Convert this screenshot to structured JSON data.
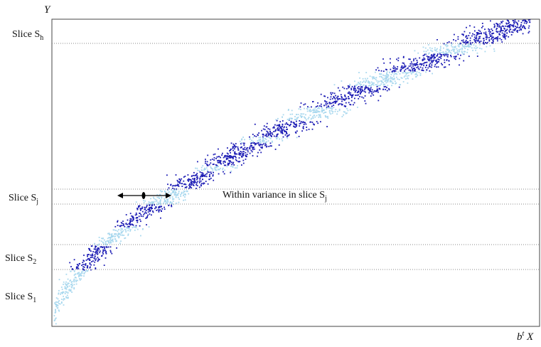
{
  "axes": {
    "y_label": "Y",
    "x_label_b": "b",
    "x_label_sup": "t",
    "x_label_X": "X"
  },
  "slices": {
    "h": {
      "base": "Slice S",
      "sub": "h"
    },
    "j": {
      "base": "Slice S",
      "sub": "j"
    },
    "two": {
      "base": "Slice S",
      "sub": "2"
    },
    "one": {
      "base": "Slice S",
      "sub": "1"
    }
  },
  "annotation": {
    "text": "Within variance in slice S",
    "sub": "j"
  },
  "colors": {
    "in_slice": "#1a1ab4",
    "out_slice": "#a9d8ee",
    "frame": "#444444",
    "slice_line": "#888888"
  }
}
